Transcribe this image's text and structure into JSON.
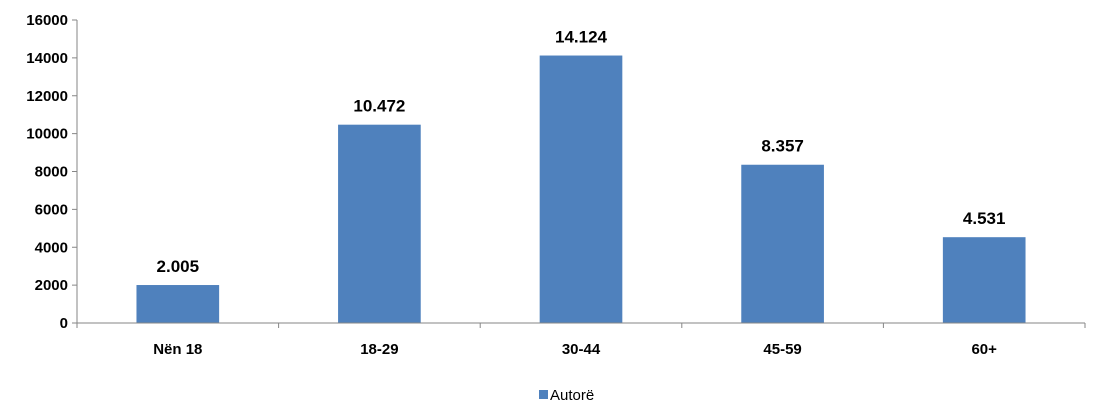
{
  "chart_data": {
    "type": "bar",
    "categories": [
      "Nën 18",
      "18-29",
      "30-44",
      "45-59",
      "60+"
    ],
    "series": [
      {
        "name": "Autorë",
        "values": [
          2005,
          10472,
          14124,
          8357,
          4531
        ],
        "data_labels": [
          "2.005",
          "10.472",
          "14.124",
          "8.357",
          "4.531"
        ],
        "color": "#4F81BD"
      }
    ],
    "yticks": [
      "0",
      "2000",
      "4000",
      "6000",
      "8000",
      "10000",
      "12000",
      "14000",
      "16000"
    ],
    "ylim": [
      0,
      16000
    ],
    "grid": false,
    "legend_position": "bottom-center"
  }
}
